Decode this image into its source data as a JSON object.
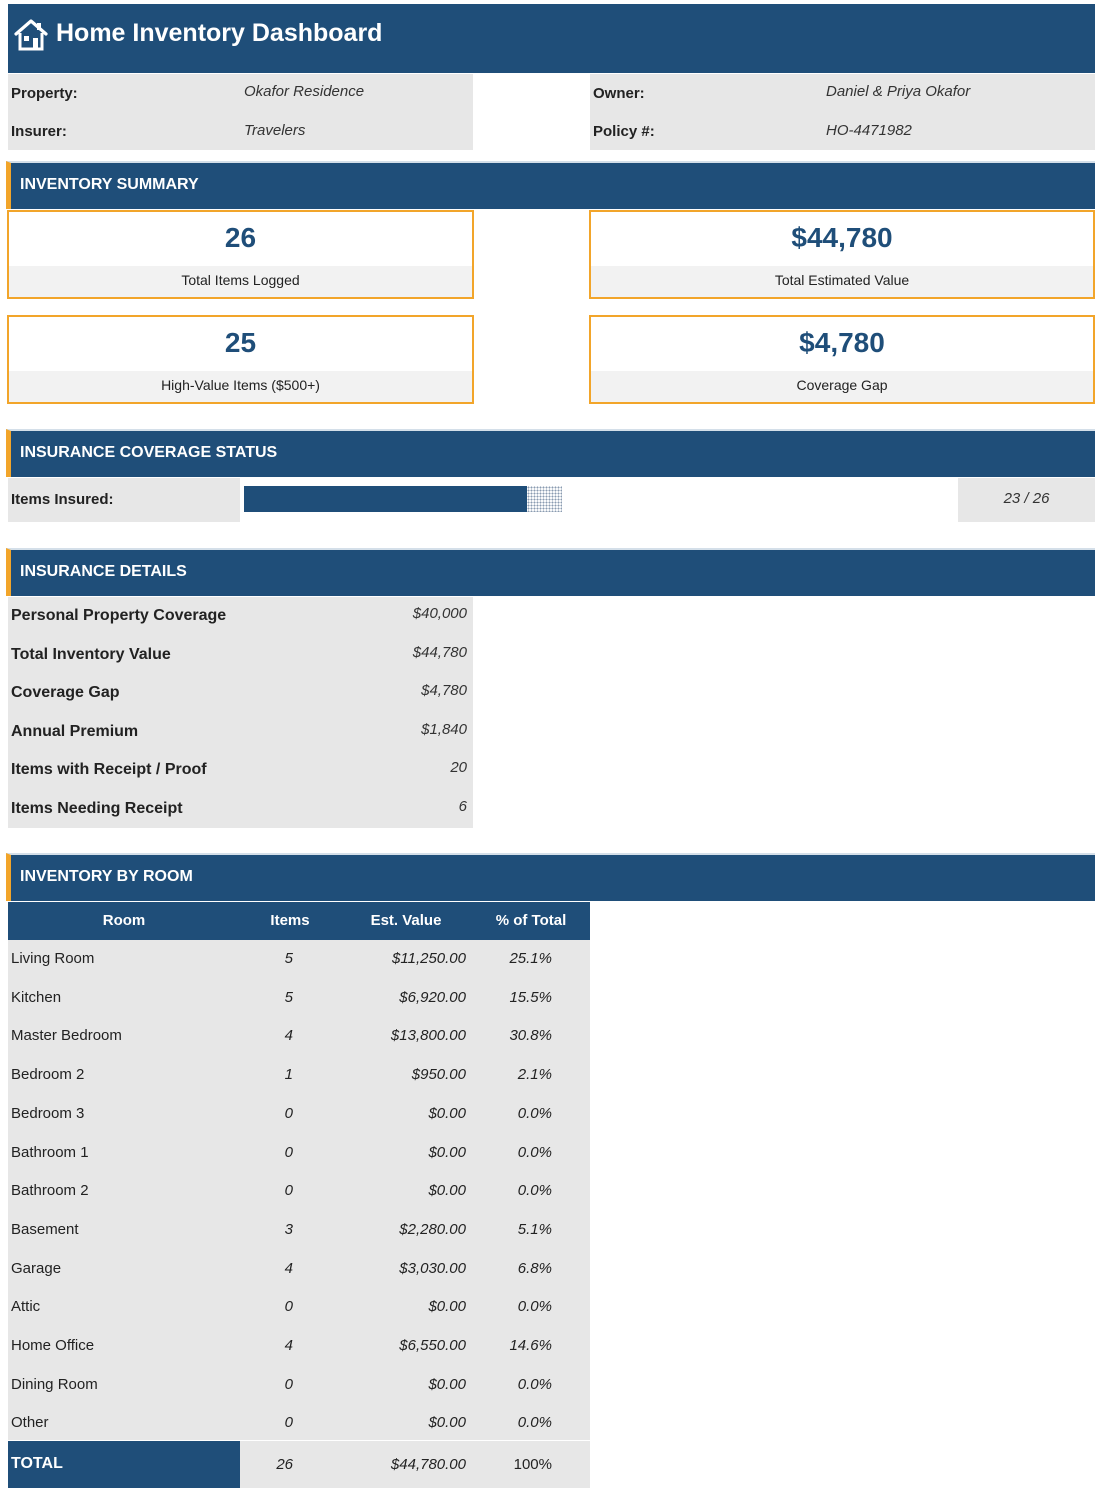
{
  "header": {
    "title": "Home Inventory Dashboard",
    "icon": "home-icon"
  },
  "info": {
    "property_label": "Property:",
    "property_value": "Okafor Residence",
    "insurer_label": "Insurer:",
    "insurer_value": "Travelers",
    "owner_label": "Owner:",
    "owner_value": "Daniel & Priya Okafor",
    "policy_label": "Policy #:",
    "policy_value": "HO-4471982"
  },
  "summary": {
    "title": "INVENTORY SUMMARY",
    "cards": [
      {
        "value": "26",
        "label": "Total Items Logged"
      },
      {
        "value": "$44,780",
        "label": "Total Estimated Value"
      },
      {
        "value": "25",
        "label": "High-Value Items ($500+)"
      },
      {
        "value": "$4,780",
        "label": "Coverage Gap"
      }
    ]
  },
  "coverage": {
    "title": "INSURANCE COVERAGE STATUS",
    "label": "Items Insured:",
    "ratio_text": "23 / 26",
    "insured": 23,
    "total": 26
  },
  "details": {
    "title": "INSURANCE DETAILS",
    "rows": [
      {
        "label": "Personal Property Coverage",
        "value": "$40,000"
      },
      {
        "label": "Total Inventory Value",
        "value": "$44,780"
      },
      {
        "label": "Coverage Gap",
        "value": "$4,780"
      },
      {
        "label": "Annual Premium",
        "value": "$1,840"
      },
      {
        "label": "Items with Receipt / Proof",
        "value": "20"
      },
      {
        "label": "Items Needing Receipt",
        "value": "6"
      }
    ]
  },
  "rooms": {
    "title": "INVENTORY BY ROOM",
    "headers": [
      "Room",
      "Items",
      "Est. Value",
      "% of Total"
    ],
    "rows": [
      [
        "Living Room",
        "5",
        "$11,250.00",
        "25.1%"
      ],
      [
        "Kitchen",
        "5",
        "$6,920.00",
        "15.5%"
      ],
      [
        "Master Bedroom",
        "4",
        "$13,800.00",
        "30.8%"
      ],
      [
        "Bedroom 2",
        "1",
        "$950.00",
        "2.1%"
      ],
      [
        "Bedroom 3",
        "0",
        "$0.00",
        "0.0%"
      ],
      [
        "Bathroom 1",
        "0",
        "$0.00",
        "0.0%"
      ],
      [
        "Bathroom 2",
        "0",
        "$0.00",
        "0.0%"
      ],
      [
        "Basement",
        "3",
        "$2,280.00",
        "5.1%"
      ],
      [
        "Garage",
        "4",
        "$3,030.00",
        "6.8%"
      ],
      [
        "Attic",
        "0",
        "$0.00",
        "0.0%"
      ],
      [
        "Home Office",
        "4",
        "$6,550.00",
        "14.6%"
      ],
      [
        "Dining Room",
        "0",
        "$0.00",
        "0.0%"
      ],
      [
        "Other",
        "0",
        "$0.00",
        "0.0%"
      ]
    ],
    "total": [
      "TOTAL",
      "26",
      "$44,780.00",
      "100%"
    ]
  },
  "colors": {
    "navy": "#1f4e79",
    "accent": "#f2a52a",
    "panel": "#e7e7e7"
  }
}
